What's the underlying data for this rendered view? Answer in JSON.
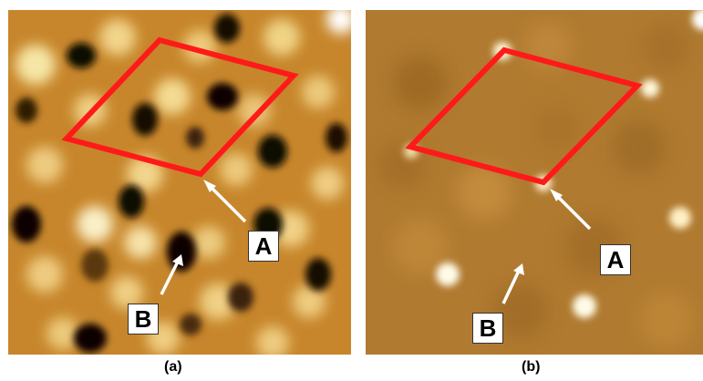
{
  "panels": [
    {
      "caption": "(a)",
      "labels": {
        "a": "A",
        "b": "B"
      }
    },
    {
      "caption": "(b)",
      "labels": {
        "a": "A",
        "b": "B"
      }
    }
  ],
  "colors": {
    "marker": "#ff1a1a",
    "arrow": "#ffffff",
    "panel_a_base": "#c7862b",
    "panel_b_base": "#b07a30"
  }
}
